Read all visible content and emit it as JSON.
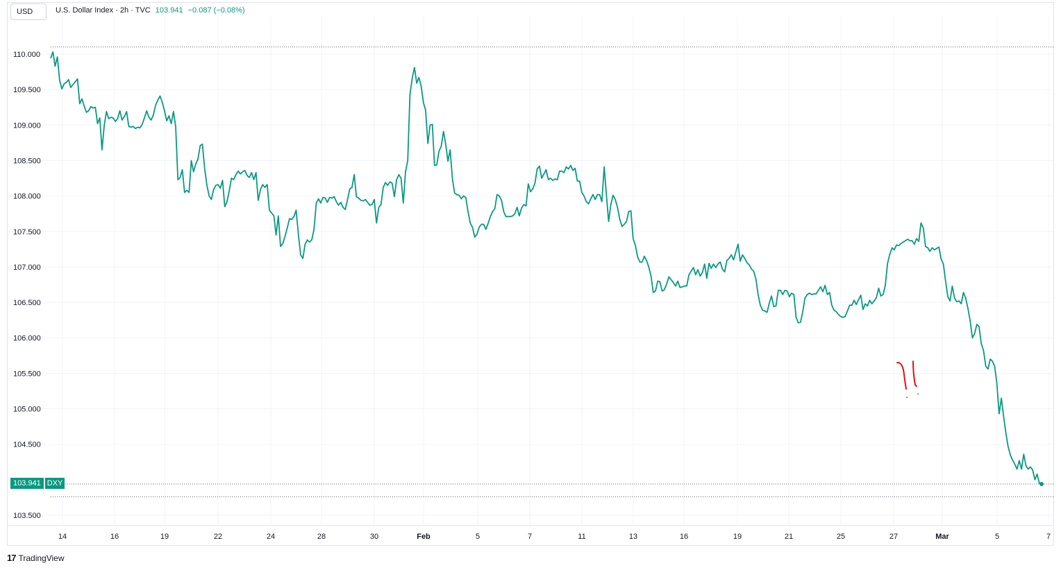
{
  "header": {
    "currency_button": "USD",
    "symbol_name": "U.S. Dollar Index · 2h · TVC",
    "last_price": "103.941",
    "change": "−0.087 (−0.08%)"
  },
  "price_badge": {
    "price": "103.941",
    "symbol": "DXY"
  },
  "brand": {
    "logo": "17",
    "name": "TradingView"
  },
  "colors": {
    "line": "#089981",
    "annotation": "#e01010",
    "grid": "#f0f3fa"
  },
  "chart_data": {
    "type": "line",
    "title": "",
    "xlabel": "",
    "ylabel": "",
    "ylim": [
      103.35,
      110.12
    ],
    "y_ticks": [
      "110.000",
      "109.500",
      "109.000",
      "108.500",
      "108.000",
      "107.500",
      "107.000",
      "106.500",
      "106.000",
      "105.500",
      "105.000",
      "104.500",
      "103.500"
    ],
    "x_ticks": [
      "14",
      "16",
      "19",
      "22",
      "24",
      "28",
      "30",
      "Feb",
      "5",
      "7",
      "11",
      "13",
      "16",
      "19",
      "21",
      "25",
      "27",
      "Mar",
      "5",
      "7"
    ],
    "reference_lines": [
      110.1,
      103.94,
      103.76
    ],
    "grid": true,
    "series": [
      {
        "values": [
          109.94,
          110.03,
          109.83,
          109.96,
          109.63,
          109.51,
          109.58,
          109.6,
          109.64,
          109.53,
          109.57,
          109.61,
          109.65,
          109.3,
          109.37,
          109.27,
          109.18,
          109.2,
          109.26,
          109.24,
          109.25,
          109.02,
          109.1,
          108.65,
          108.99,
          109.19,
          109.09,
          109.11,
          109.1,
          109.05,
          109.09,
          109.2,
          109.07,
          109.12,
          109.19,
          108.98,
          108.97,
          108.98,
          108.95,
          108.97,
          108.96,
          109.01,
          109.1,
          109.2,
          109.11,
          109.07,
          109.14,
          109.28,
          109.35,
          109.41,
          109.32,
          109.2,
          109.06,
          109.13,
          109.02,
          109.19,
          108.98,
          108.23,
          108.26,
          108.37,
          108.05,
          108.08,
          108.05,
          108.5,
          108.34,
          108.45,
          108.52,
          108.71,
          108.73,
          108.38,
          108.15,
          108.0,
          107.95,
          108.09,
          108.15,
          108.16,
          108.11,
          108.22,
          107.85,
          107.92,
          108.07,
          108.25,
          108.23,
          108.3,
          108.35,
          108.31,
          108.34,
          108.36,
          108.29,
          108.26,
          108.33,
          108.23,
          108.33,
          107.94,
          108.09,
          108.16,
          108.12,
          108.16,
          107.8,
          107.76,
          107.72,
          107.45,
          107.72,
          107.29,
          107.33,
          107.43,
          107.55,
          107.68,
          107.67,
          107.71,
          107.8,
          107.45,
          107.17,
          107.12,
          107.32,
          107.38,
          107.35,
          107.38,
          107.53,
          107.9,
          107.96,
          107.9,
          107.98,
          107.97,
          107.91,
          107.98,
          107.97,
          107.99,
          107.92,
          107.87,
          107.91,
          107.84,
          107.81,
          107.95,
          108.1,
          108.12,
          108.3,
          107.99,
          107.97,
          107.94,
          107.93,
          107.95,
          107.91,
          107.87,
          107.88,
          107.95,
          107.62,
          107.84,
          107.88,
          108.12,
          108.19,
          108.15,
          108.2,
          108.18,
          107.99,
          108.23,
          108.3,
          108.25,
          107.9,
          108.34,
          108.5,
          109.43,
          109.66,
          109.81,
          109.59,
          109.67,
          109.55,
          109.32,
          109.21,
          108.74,
          109.0,
          109.01,
          108.43,
          108.44,
          108.63,
          108.7,
          108.91,
          108.73,
          108.49,
          108.65,
          108.25,
          108.04,
          108.02,
          108.01,
          107.96,
          108.0,
          107.98,
          107.78,
          107.62,
          107.56,
          107.42,
          107.46,
          107.56,
          107.6,
          107.6,
          107.53,
          107.61,
          107.71,
          107.78,
          107.82,
          108.02,
          108.0,
          107.94,
          107.78,
          107.71,
          107.71,
          107.71,
          107.72,
          107.75,
          107.84,
          107.72,
          107.83,
          107.88,
          107.86,
          108.17,
          108.06,
          108.1,
          108.18,
          108.38,
          108.42,
          108.25,
          108.31,
          108.37,
          108.23,
          108.25,
          108.22,
          108.24,
          108.23,
          108.35,
          108.35,
          108.33,
          108.41,
          108.38,
          108.43,
          108.36,
          108.39,
          108.21,
          108.21,
          108.05,
          108.0,
          107.92,
          107.89,
          107.96,
          108.02,
          107.95,
          108.02,
          108.02,
          107.92,
          108.41,
          108.02,
          107.64,
          107.88,
          108.01,
          107.95,
          107.84,
          107.67,
          107.57,
          107.6,
          107.64,
          107.78,
          107.79,
          107.4,
          107.3,
          107.14,
          107.07,
          107.07,
          107.15,
          107.09,
          107.0,
          106.87,
          106.64,
          106.66,
          106.8,
          106.79,
          106.66,
          106.68,
          106.76,
          106.86,
          106.82,
          106.78,
          106.73,
          106.8,
          106.71,
          106.72,
          106.73,
          106.73,
          106.89,
          106.94,
          106.99,
          106.89,
          106.96,
          106.87,
          106.92,
          107.04,
          106.84,
          107.05,
          106.98,
          107.04,
          106.99,
          107.04,
          107.07,
          106.97,
          106.93,
          107.09,
          107.12,
          107.17,
          107.1,
          107.21,
          107.32,
          107.08,
          107.17,
          107.12,
          107.06,
          107.03,
          106.97,
          106.94,
          106.83,
          106.61,
          106.46,
          106.39,
          106.38,
          106.36,
          106.49,
          106.59,
          106.44,
          106.45,
          106.67,
          106.67,
          106.61,
          106.67,
          106.66,
          106.58,
          106.63,
          106.61,
          106.29,
          106.21,
          106.22,
          106.37,
          106.56,
          106.61,
          106.63,
          106.61,
          106.62,
          106.62,
          106.67,
          106.72,
          106.65,
          106.74,
          106.61,
          106.64,
          106.46,
          106.39,
          106.37,
          106.33,
          106.3,
          106.29,
          106.3,
          106.38,
          106.46,
          106.46,
          106.53,
          106.47,
          106.54,
          106.6,
          106.4,
          106.48,
          106.45,
          106.53,
          106.48,
          106.52,
          106.57,
          106.7,
          106.59,
          106.61,
          106.74,
          107.05,
          107.18,
          107.27,
          107.24,
          107.31,
          107.3,
          107.33,
          107.35,
          107.37,
          107.39,
          107.37,
          107.37,
          107.32,
          107.4,
          107.36,
          107.62,
          107.55,
          107.29,
          107.27,
          107.22,
          107.27,
          107.24,
          107.26,
          107.28,
          107.11,
          107.04,
          106.8,
          106.58,
          106.52,
          106.73,
          106.56,
          106.51,
          106.52,
          106.48,
          106.64,
          106.56,
          106.42,
          106.24,
          106.0,
          106.06,
          106.19,
          106.16,
          105.92,
          105.82,
          105.6,
          105.56,
          105.7,
          105.67,
          105.6,
          105.35,
          104.93,
          105.15,
          104.89,
          104.66,
          104.47,
          104.35,
          104.28,
          104.22,
          104.15,
          104.27,
          104.15,
          104.36,
          104.2,
          104.15,
          104.18,
          104.14,
          104.0,
          104.08,
          103.95,
          103.94
        ]
      }
    ],
    "annotation": {
      "type": "freehand",
      "mark": "!!"
    }
  }
}
